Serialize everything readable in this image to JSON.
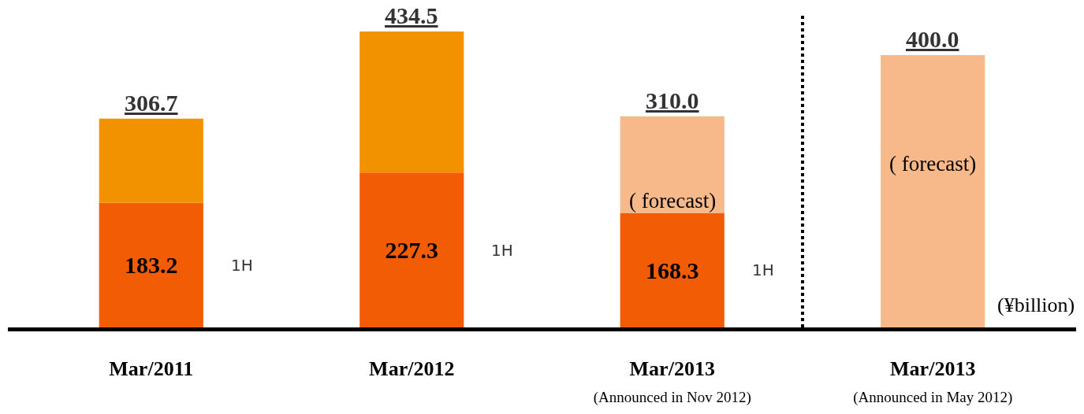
{
  "chart_data": {
    "type": "bar",
    "stacked": true,
    "legend": false,
    "categories": [
      "Mar/2011",
      "Mar/2012",
      "Mar/2013\n(Announced in Nov 2012)",
      "Mar/2013\n(Announced in May 2012)"
    ],
    "series": [
      {
        "colors": [
          "#f25c05",
          "#f25c05",
          "#f25c05",
          "#f25c05"
        ],
        "values": [
          183.2,
          227.3,
          168.3,
          null
        ],
        "value_labels": [
          "183.2",
          "227.3",
          "168.3",
          null
        ]
      },
      {
        "colors": [
          "#f39200",
          "#f39200",
          "#f7b98a",
          "#f7b98a"
        ],
        "values": [
          123.5,
          207.2,
          141.7,
          400.0
        ]
      }
    ],
    "totals": [
      "306.7",
      "434.5",
      "310.0",
      "400.0"
    ],
    "annotations": [
      "( forecast)",
      "( forecast)",
      "1H",
      "1H",
      "1H",
      "(¥billion)"
    ]
  }
}
